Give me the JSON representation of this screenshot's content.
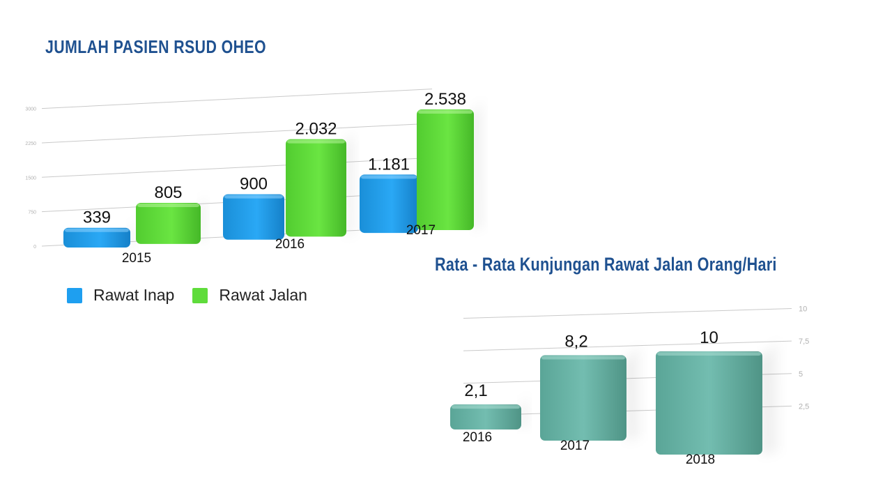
{
  "chart_data": [
    {
      "type": "bar",
      "title": "JUMLAH PASIEN RSUD OHEO",
      "categories": [
        "2015",
        "2016",
        "2017"
      ],
      "series": [
        {
          "name": "Rawat Inap",
          "color": "#1e9ff0",
          "values": [
            339,
            900,
            1181
          ],
          "labels": [
            "339",
            "900",
            "1.181"
          ]
        },
        {
          "name": "Rawat Jalan",
          "color": "#5fdc3b",
          "values": [
            805,
            2032,
            2538
          ],
          "labels": [
            "805",
            "2.032",
            "2.538"
          ]
        }
      ],
      "yticks": [
        "0",
        "750",
        "1500",
        "2250",
        "3000"
      ],
      "ylim": [
        0,
        3000
      ],
      "grid": true,
      "legend": "bottom-left"
    },
    {
      "type": "bar",
      "title": "Rata - Rata Kunjungan Rawat Jalan Orang/Hari",
      "categories": [
        "2016",
        "2017",
        "2018"
      ],
      "values": [
        2.1,
        8.2,
        10
      ],
      "labels": [
        "2,1",
        "8,2",
        "10"
      ],
      "color": "#6db7aa",
      "yticks": [
        "2,5",
        "5",
        "7,5",
        "10"
      ],
      "ylim": [
        0,
        10
      ],
      "grid": true
    }
  ]
}
